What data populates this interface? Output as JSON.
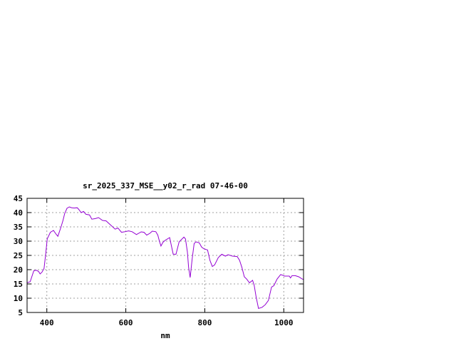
{
  "chart_data": {
    "type": "line",
    "title": "sr_2025_337_MSE__y02_r_rad 07-46-00",
    "xlabel": "nm",
    "ylabel": "",
    "xlim": [
      350,
      1050
    ],
    "ylim": [
      5,
      45
    ],
    "xticks": [
      400,
      600,
      800,
      1000
    ],
    "yticks": [
      5,
      10,
      15,
      20,
      25,
      30,
      35,
      40,
      45
    ],
    "grid": true,
    "line_color": "#9400d3",
    "series": [
      {
        "x": [
          350,
          358,
          367,
          373,
          379,
          383,
          388,
          393,
          397,
          401,
          409,
          417,
          423,
          428,
          436,
          441,
          445,
          451,
          457,
          463,
          469,
          477,
          481,
          487,
          493,
          499,
          508,
          514,
          523,
          531,
          541,
          550,
          562,
          573,
          580,
          589,
          598,
          607,
          616,
          627,
          639,
          646,
          653,
          661,
          667,
          676,
          681,
          685,
          689,
          694,
          700,
          711,
          720,
          727,
          735,
          747,
          751,
          756,
          759,
          763,
          768,
          773,
          778,
          786,
          792,
          798,
          807,
          813,
          819,
          825,
          834,
          843,
          852,
          859,
          870,
          882,
          888,
          894,
          900,
          906,
          913,
          921,
          925,
          930,
          936,
          945,
          953,
          961,
          969,
          975,
          983,
          992,
          996,
          1002,
          1014,
          1017,
          1021,
          1029,
          1038,
          1047,
          1050
        ],
        "y": [
          15.4,
          15.8,
          19.6,
          19.8,
          19.4,
          18.5,
          19.2,
          20.4,
          25.4,
          30.8,
          33.1,
          33.75,
          32.5,
          31.7,
          35,
          37.25,
          39.6,
          41.5,
          42,
          41.7,
          41.6,
          41.7,
          41.1,
          40,
          40.4,
          39.4,
          39.2,
          37.7,
          37.9,
          38.25,
          37.25,
          37.1,
          35.6,
          34.2,
          34.6,
          33.1,
          33.3,
          33.6,
          33.3,
          32.3,
          33.25,
          33.1,
          32.1,
          32.75,
          33.5,
          33.3,
          32.1,
          30,
          28.3,
          29.6,
          30.3,
          31.25,
          25.4,
          25.4,
          29.75,
          31.4,
          30.8,
          26.25,
          20.8,
          17.25,
          23.75,
          29.2,
          29.75,
          29.4,
          27.9,
          27.3,
          26.9,
          23.3,
          21.1,
          21.7,
          24.2,
          25.4,
          24.75,
          25.25,
          24.75,
          24.6,
          23.3,
          20.8,
          17.5,
          16.7,
          15.4,
          16.25,
          14.6,
          10.4,
          6.4,
          6.8,
          7.7,
          9.2,
          13.9,
          14.4,
          16.7,
          18.3,
          18.1,
          17.75,
          17.75,
          17.1,
          17.9,
          17.9,
          17.5,
          16.7,
          16.6
        ]
      }
    ]
  }
}
